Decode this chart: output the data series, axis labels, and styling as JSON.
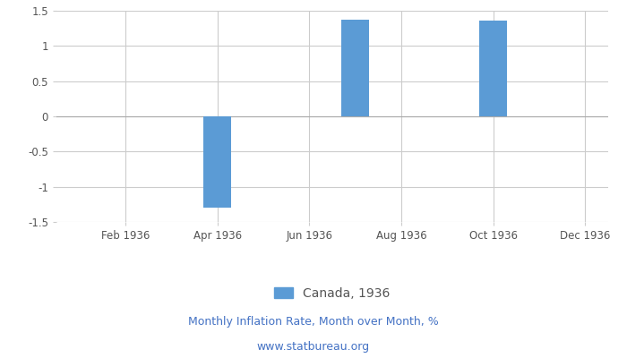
{
  "months": [
    1,
    2,
    3,
    4,
    5,
    6,
    7,
    8,
    9,
    10,
    11,
    12
  ],
  "values": [
    0,
    0,
    0,
    -1.3,
    0,
    0,
    1.37,
    0,
    0,
    1.36,
    0,
    0
  ],
  "bar_color": "#5b9bd5",
  "legend_label": "Canada, 1936",
  "xlabel_bottom": "Monthly Inflation Rate, Month over Month, %",
  "xlabel_bottom2": "www.statbureau.org",
  "ylim": [
    -1.5,
    1.5
  ],
  "yticks": [
    -1.5,
    -1.0,
    -0.5,
    0,
    0.5,
    1.0,
    1.5
  ],
  "xtick_positions": [
    2,
    4,
    6,
    8,
    10,
    12
  ],
  "xtick_labels": [
    "Feb 1936",
    "Apr 1936",
    "Jun 1936",
    "Aug 1936",
    "Oct 1936",
    "Dec 1936"
  ],
  "background_color": "#ffffff",
  "grid_color": "#cccccc",
  "tick_color": "#555555",
  "bottom_text_color": "#4472c4",
  "bar_width": 0.6
}
